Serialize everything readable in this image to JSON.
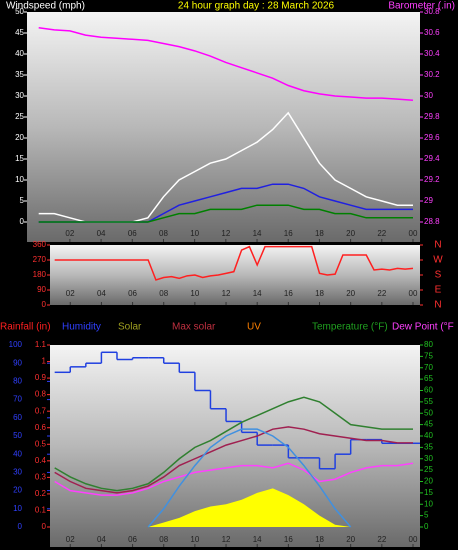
{
  "chart_data": [
    {
      "type": "line",
      "title": "24 hour graph day : 28 March 2026",
      "y_label": "Windspeed (mph)",
      "y2_label": "Barometer (.in)",
      "x": [
        0,
        1,
        2,
        3,
        4,
        5,
        6,
        7,
        8,
        9,
        10,
        11,
        12,
        13,
        14,
        15,
        16,
        17,
        18,
        19,
        20,
        21,
        22,
        23,
        24
      ],
      "xlim": [
        -0.75,
        24.45
      ],
      "xticks": [
        {
          "value": 2,
          "label": "02"
        },
        {
          "value": 4,
          "label": "04"
        },
        {
          "value": 6,
          "label": "06"
        },
        {
          "value": 8,
          "label": "08"
        },
        10,
        12,
        14,
        16,
        18,
        20,
        22,
        {
          "value": 24,
          "label": "00"
        }
      ],
      "ylim": [
        0,
        50
      ],
      "yticks": [
        0,
        5,
        10,
        15,
        20,
        25,
        30,
        35,
        40,
        45,
        50
      ],
      "y2lim": [
        28.8,
        30.8
      ],
      "y2ticks": [
        28.8,
        29,
        29.2,
        29.4,
        29.6,
        29.8,
        30,
        30.2,
        30.4,
        30.6,
        30.8
      ],
      "series": [
        {
          "color": "#ffffff",
          "values": [
            2,
            2,
            1,
            0,
            0,
            0,
            0,
            1,
            6,
            10,
            12,
            14,
            15,
            17,
            19,
            22,
            26,
            20,
            14,
            10,
            8,
            6,
            5,
            4,
            4
          ]
        },
        {
          "color": "#2020e0",
          "values": [
            0,
            0,
            0,
            0,
            0,
            0,
            0,
            0,
            2,
            4,
            5,
            6,
            7,
            8,
            8,
            9,
            9,
            8,
            6,
            5,
            4,
            3,
            3,
            3,
            3
          ]
        },
        {
          "color": "#008000",
          "values": [
            0,
            0,
            0,
            0,
            0,
            0,
            0,
            0,
            1,
            2,
            2,
            3,
            3,
            3,
            4,
            4,
            4,
            3,
            3,
            2,
            2,
            1,
            1,
            1,
            1
          ]
        },
        {
          "color": "#ff00ff",
          "axis": "y2",
          "values": [
            30.65,
            30.63,
            30.62,
            30.58,
            30.56,
            30.55,
            30.54,
            30.53,
            30.5,
            30.47,
            30.43,
            30.38,
            30.32,
            30.27,
            30.22,
            30.17,
            30.1,
            30.05,
            30.02,
            30.0,
            29.99,
            29.98,
            29.98,
            29.97,
            29.96
          ]
        }
      ]
    },
    {
      "type": "line",
      "x": [
        1,
        1.5,
        2,
        2.5,
        3,
        3.5,
        4,
        4.5,
        5,
        5.5,
        6,
        6.5,
        7,
        7.5,
        8,
        8.5,
        9,
        9.5,
        10,
        10.5,
        11,
        11.5,
        12,
        12.5,
        13,
        13.5,
        14,
        14.5,
        15,
        15.5,
        16,
        16.5,
        17,
        17.5,
        18,
        18.5,
        19,
        19.5,
        20,
        20.5,
        21,
        21.5,
        22,
        22.5,
        23,
        23.5,
        24
      ],
      "xlim": [
        0.7,
        24.45
      ],
      "xticks": [
        {
          "value": 2,
          "label": "02"
        },
        {
          "value": 4,
          "label": "04"
        },
        {
          "value": 6,
          "label": "06"
        },
        {
          "value": 8,
          "label": "08"
        },
        10,
        12,
        14,
        16,
        18,
        20,
        22,
        {
          "value": 24,
          "label": "00"
        }
      ],
      "ylim": [
        0,
        360
      ],
      "yticks": [
        0,
        90,
        180,
        270,
        360
      ],
      "y2lim": [
        0,
        360
      ],
      "y2ticks": [
        {
          "value": 360,
          "label": "N"
        },
        {
          "value": 270,
          "label": "W"
        },
        {
          "value": 180,
          "label": "S"
        },
        {
          "value": 90,
          "label": "E"
        },
        {
          "value": 0,
          "label": "N"
        }
      ],
      "series": [
        {
          "color": "#ff2020",
          "values": [
            270,
            270,
            270,
            270,
            270,
            270,
            270,
            270,
            270,
            270,
            270,
            270,
            270,
            150,
            165,
            170,
            160,
            175,
            180,
            165,
            175,
            180,
            190,
            200,
            330,
            350,
            240,
            350,
            350,
            350,
            350,
            350,
            350,
            350,
            190,
            180,
            185,
            300,
            300,
            300,
            300,
            210,
            215,
            210,
            220,
            215,
            220
          ]
        }
      ]
    },
    {
      "type": "line",
      "legend": [
        {
          "label": "Rainfall (in)",
          "color": "#ff2020"
        },
        {
          "label": "Humidity",
          "color": "#3040ff"
        },
        {
          "label": "Solar",
          "color": "#a0a020"
        },
        {
          "label": "Max solar",
          "color": "#c03040"
        },
        {
          "label": "UV",
          "color": "#ff8000"
        },
        {
          "label": "Temperature (°F)",
          "color": "#20a020"
        },
        {
          "label": "Dew Point (°F",
          "color": "#ff40ff"
        }
      ],
      "x": [
        1,
        2,
        3,
        4,
        5,
        6,
        7,
        8,
        9,
        10,
        11,
        12,
        13,
        14,
        15,
        16,
        17,
        18,
        19,
        20,
        21,
        22,
        23,
        24
      ],
      "xlim": [
        0.7,
        24.45
      ],
      "xticks": [
        {
          "value": 2,
          "label": "02"
        },
        {
          "value": 4,
          "label": "04"
        },
        {
          "value": 6,
          "label": "06"
        },
        {
          "value": 8,
          "label": "08"
        },
        10,
        12,
        14,
        16,
        18,
        20,
        22,
        {
          "value": 24,
          "label": "00"
        }
      ],
      "ylim": [
        0,
        1.1
      ],
      "yticks": [
        0,
        0.1,
        0.2,
        0.3,
        0.4,
        0.5,
        0.6,
        0.7,
        0.8,
        0.9,
        1,
        1.1
      ],
      "y3lim": [
        0,
        100
      ],
      "y3ticks": [
        0,
        10,
        20,
        30,
        40,
        50,
        60,
        70,
        80,
        90,
        100
      ],
      "y2lim": [
        0,
        80
      ],
      "y2ticks": [
        0,
        5,
        10,
        15,
        20,
        25,
        30,
        35,
        40,
        45,
        50,
        55,
        60,
        65,
        70,
        75,
        80
      ],
      "series": [
        {
          "color": "#ffff00",
          "axis": "y2",
          "area": true,
          "values": [
            0,
            0,
            0,
            0,
            0,
            0,
            0,
            2,
            4,
            7,
            9,
            10,
            12,
            15,
            17,
            14,
            10,
            5,
            1,
            0,
            0,
            0,
            0,
            0
          ]
        },
        {
          "color": "#2040e0",
          "axis": "y3",
          "step": true,
          "values": [
            85,
            88,
            90,
            96,
            92,
            93,
            93,
            90,
            85,
            75,
            65,
            58,
            52,
            45,
            45,
            38,
            38,
            32,
            40,
            48,
            48,
            46,
            46,
            46
          ]
        },
        {
          "color": "#308030",
          "axis": "y2",
          "values": [
            26,
            22,
            19,
            17,
            16,
            17,
            19,
            24,
            30,
            35,
            38,
            42,
            46,
            49,
            52,
            55,
            57,
            55,
            50,
            45,
            44,
            43,
            43,
            43
          ]
        },
        {
          "color": "#a02050",
          "axis": "y2",
          "values": [
            24,
            20,
            17,
            16,
            15,
            16,
            18,
            22,
            27,
            30,
            33,
            36,
            38,
            40,
            43,
            44,
            43,
            41,
            40,
            39,
            38,
            38,
            37,
            37
          ]
        },
        {
          "color": "#ff40ff",
          "axis": "y2",
          "values": [
            20,
            16,
            15,
            14,
            14,
            15,
            17,
            20,
            22,
            24,
            25,
            26,
            27,
            27,
            26,
            28,
            25,
            20,
            21,
            24,
            26,
            27,
            27,
            28
          ]
        },
        {
          "color": "#4090e0",
          "axis": "y2",
          "values": [
            null,
            null,
            null,
            null,
            null,
            null,
            0,
            8,
            18,
            27,
            35,
            40,
            43,
            43,
            40,
            35,
            27,
            18,
            8,
            0,
            null,
            null,
            null,
            null
          ]
        }
      ]
    }
  ]
}
